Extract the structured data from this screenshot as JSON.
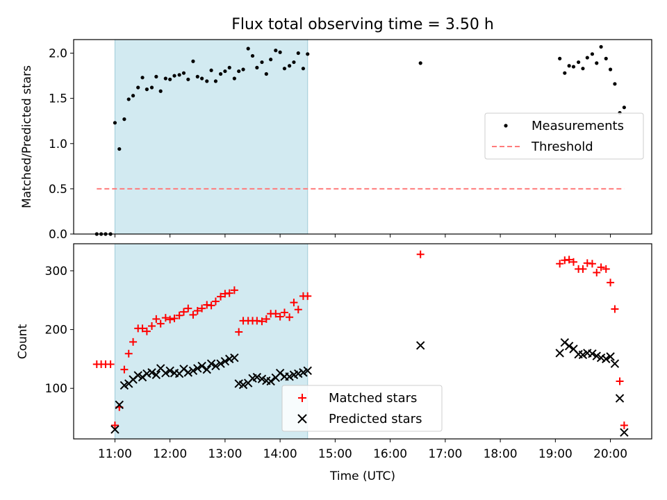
{
  "title": "Flux total observing time = 3.50 h",
  "chart_data": [
    {
      "type": "scatter",
      "ylabel": "Matched/Predicted stars",
      "xlim": [
        10.25,
        20.75
      ],
      "ylim": [
        0.0,
        2.15
      ],
      "yticks": [
        0.0,
        0.5,
        1.0,
        1.5,
        2.0
      ],
      "ytick_labels": [
        "0.0",
        "0.5",
        "1.0",
        "1.5",
        "2.0"
      ],
      "shaded_interval": [
        11.0,
        14.5
      ],
      "threshold": {
        "value": 0.5,
        "x_from": 10.67,
        "x_to": 20.25,
        "color": "#ff7b7b"
      },
      "legend": {
        "position": "center-right",
        "entries": [
          "Measurements",
          "Threshold"
        ]
      },
      "series": [
        {
          "name": "Measurements",
          "color": "#000000",
          "x": [
            10.67,
            10.75,
            10.83,
            10.92,
            11.0,
            11.08,
            11.17,
            11.25,
            11.33,
            11.42,
            11.5,
            11.58,
            11.67,
            11.75,
            11.83,
            11.92,
            12.0,
            12.08,
            12.17,
            12.25,
            12.33,
            12.42,
            12.5,
            12.58,
            12.67,
            12.75,
            12.83,
            12.92,
            13.0,
            13.08,
            13.17,
            13.25,
            13.33,
            13.42,
            13.5,
            13.58,
            13.67,
            13.75,
            13.83,
            13.92,
            14.0,
            14.08,
            14.17,
            14.25,
            14.33,
            14.42,
            14.5,
            16.55,
            19.08,
            19.17,
            19.25,
            19.33,
            19.42,
            19.5,
            19.58,
            19.67,
            19.75,
            19.83,
            19.92,
            20.0,
            20.08,
            20.17,
            20.25
          ],
          "values": [
            0,
            0,
            0,
            0,
            1.23,
            0.94,
            1.27,
            1.49,
            1.53,
            1.62,
            1.73,
            1.6,
            1.62,
            1.74,
            1.58,
            1.72,
            1.71,
            1.75,
            1.76,
            1.78,
            1.71,
            1.91,
            1.74,
            1.72,
            1.69,
            1.81,
            1.69,
            1.77,
            1.8,
            1.84,
            1.72,
            1.8,
            1.82,
            2.05,
            1.97,
            1.84,
            1.9,
            1.77,
            1.93,
            2.03,
            2.01,
            1.83,
            1.86,
            1.9,
            2.0,
            1.83,
            1.99,
            1.89,
            1.94,
            1.78,
            1.86,
            1.85,
            1.9,
            1.83,
            1.95,
            1.99,
            1.89,
            2.07,
            1.94,
            1.82,
            1.66,
            1.34,
            1.4
          ]
        }
      ]
    },
    {
      "type": "scatter",
      "ylabel": "Count",
      "xlabel": "Time (UTC)",
      "xlim": [
        10.25,
        20.75
      ],
      "ylim": [
        14,
        346
      ],
      "yticks": [
        100,
        200,
        300
      ],
      "ytick_labels": [
        "100",
        "200",
        "300"
      ],
      "xticks": [
        11,
        12,
        13,
        14,
        15,
        16,
        17,
        18,
        19,
        20
      ],
      "xtick_labels": [
        "11:00",
        "12:00",
        "13:00",
        "14:00",
        "15:00",
        "16:00",
        "17:00",
        "18:00",
        "19:00",
        "20:00"
      ],
      "shaded_interval": [
        11.0,
        14.5
      ],
      "legend": {
        "position": "bottom-center",
        "entries": [
          "Matched stars",
          "Predicted stars"
        ]
      },
      "series": [
        {
          "name": "Matched stars",
          "marker": "plus",
          "color": "#ff0000",
          "x": [
            10.67,
            10.75,
            10.83,
            10.92,
            11.0,
            11.08,
            11.17,
            11.25,
            11.33,
            11.42,
            11.5,
            11.58,
            11.67,
            11.75,
            11.83,
            11.92,
            12.0,
            12.08,
            12.17,
            12.25,
            12.33,
            12.42,
            12.5,
            12.58,
            12.67,
            12.75,
            12.83,
            12.92,
            13.0,
            13.08,
            13.17,
            13.25,
            13.33,
            13.42,
            13.5,
            13.58,
            13.67,
            13.75,
            13.83,
            13.92,
            14.0,
            14.08,
            14.17,
            14.25,
            14.33,
            14.42,
            14.5,
            16.55,
            19.08,
            19.17,
            19.25,
            19.33,
            19.42,
            19.5,
            19.58,
            19.67,
            19.75,
            19.83,
            19.92,
            20.0,
            20.08,
            20.17,
            20.25
          ],
          "values": [
            141,
            141,
            141,
            141,
            37,
            68,
            132,
            159,
            179,
            202,
            202,
            197,
            206,
            218,
            210,
            220,
            217,
            219,
            224,
            230,
            236,
            225,
            232,
            236,
            242,
            241,
            248,
            256,
            261,
            262,
            267,
            196,
            215,
            215,
            215,
            215,
            214,
            218,
            227,
            227,
            222,
            229,
            221,
            246,
            234,
            257,
            257,
            328,
            312,
            318,
            319,
            315,
            303,
            303,
            313,
            312,
            297,
            306,
            303,
            280,
            235,
            112,
            37
          ]
        },
        {
          "name": "Predicted stars",
          "marker": "x",
          "color": "#000000",
          "x": [
            11.0,
            11.08,
            11.17,
            11.25,
            11.33,
            11.42,
            11.5,
            11.58,
            11.67,
            11.75,
            11.83,
            11.92,
            12.0,
            12.08,
            12.17,
            12.25,
            12.33,
            12.42,
            12.5,
            12.58,
            12.67,
            12.75,
            12.83,
            12.92,
            13.0,
            13.08,
            13.17,
            13.25,
            13.33,
            13.42,
            13.5,
            13.58,
            13.67,
            13.75,
            13.83,
            13.92,
            14.0,
            14.08,
            14.17,
            14.25,
            14.33,
            14.42,
            14.5,
            16.55,
            19.08,
            19.17,
            19.25,
            19.33,
            19.42,
            19.5,
            19.58,
            19.67,
            19.75,
            19.83,
            19.92,
            20.0,
            20.08,
            20.17,
            20.25
          ],
          "values": [
            30,
            72,
            105,
            108,
            115,
            122,
            119,
            125,
            127,
            123,
            134,
            126,
            130,
            126,
            125,
            133,
            127,
            130,
            134,
            138,
            132,
            142,
            138,
            142,
            146,
            150,
            152,
            108,
            106,
            109,
            117,
            119,
            116,
            113,
            112,
            118,
            126,
            120,
            120,
            123,
            125,
            127,
            130,
            173,
            160,
            178,
            172,
            167,
            158,
            157,
            160,
            159,
            155,
            152,
            150,
            154,
            142,
            83,
            25
          ]
        }
      ]
    }
  ]
}
